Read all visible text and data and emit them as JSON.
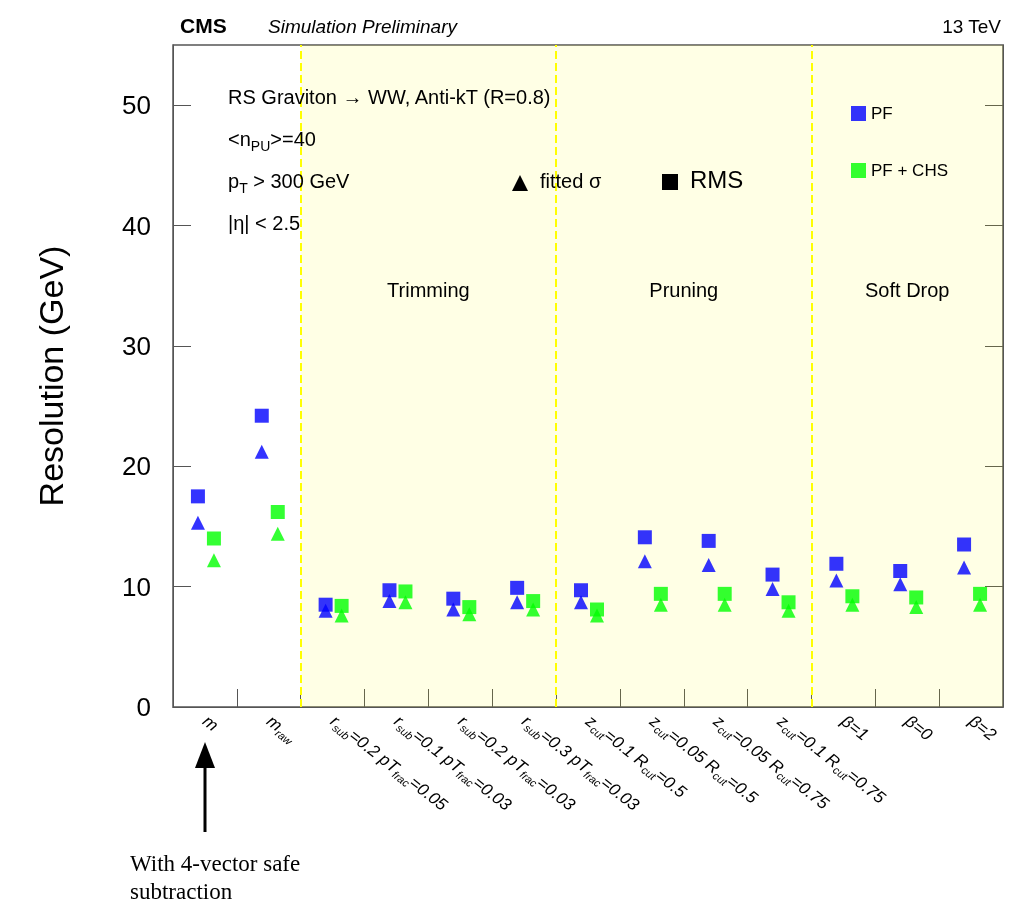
{
  "chart_data": {
    "type": "scatter",
    "ylabel": "Resolution (GeV)",
    "categories": [
      "m",
      "m$_{raw}$",
      "r$_{sub}$=0.2 pT$_{frac}$=0.05",
      "r$_{sub}$=0.1 pT$_{frac}$=0.03",
      "r$_{sub}$=0.2 pT$_{frac}$=0.03",
      "r$_{sub}$=0.3 pT$_{frac}$=0.03",
      "z$_{cut}$=0.1 R$_{cut}$=0.5",
      "z$_{cut}$=0.05 R$_{cut}$=0.5",
      "z$_{cut}$=0.05 R$_{cut}$=0.75",
      "z$_{cut}$=0.1 R$_{cut}$=0.75",
      "β=1",
      "β=0",
      "β=2"
    ],
    "series": [
      {
        "name": "PF",
        "color": "#0000ff",
        "marker": "square",
        "values": [
          17.5,
          24.2,
          8.5,
          9.7,
          9.0,
          9.9,
          9.7,
          14.1,
          13.8,
          11.0,
          11.9,
          11.3,
          13.5
        ]
      },
      {
        "color": "#0000ff",
        "marker": "triangle",
        "values": [
          15.3,
          21.2,
          8.0,
          8.8,
          8.1,
          8.7,
          8.7,
          12.1,
          11.8,
          9.8,
          10.5,
          10.2,
          11.6
        ]
      },
      {
        "name": "PF + CHS",
        "color": "#00ff00",
        "marker": "square",
        "values": [
          14.0,
          16.2,
          8.4,
          9.6,
          8.3,
          8.8,
          8.1,
          9.4,
          9.4,
          8.7,
          9.2,
          9.1,
          9.4
        ]
      },
      {
        "color": "#00ff00",
        "marker": "triangle",
        "values": [
          12.2,
          14.4,
          7.6,
          8.7,
          7.7,
          8.1,
          7.6,
          8.5,
          8.5,
          8.0,
          8.5,
          8.3,
          8.5
        ]
      }
    ],
    "ylim": [
      0,
      55
    ],
    "yticks": [
      0,
      10,
      20,
      30,
      40,
      50
    ],
    "bands": [
      {
        "axis": "x",
        "from": "r$_{sub}$=0.2 pT$_{frac}$=0.05",
        "to": "r$_{sub}$=0.3 pT$_{frac}$=0.03",
        "label": "Trimming",
        "color": "#ffff00"
      },
      {
        "axis": "x",
        "from": "z$_{cut}$=0.1 R$_{cut}$=0.5",
        "to": "z$_{cut}$=0.1 R$_{cut}$=0.75",
        "label": "Pruning",
        "color": "#ffff00"
      },
      {
        "axis": "x",
        "from": "β=1",
        "to": "β=2",
        "label": "Soft Drop",
        "color": "#ffff00"
      }
    ],
    "legend": "top right",
    "annotations": [
      "CMS",
      "Simulation Preliminary",
      "13 TeV",
      "RS Graviton → WW, Anti-kT (R=0.8)",
      "<n$_{PU}$>=40",
      "p$_{T}$ > 300 GeV",
      "|η| < 2.5",
      "fitted σ",
      "RMS",
      "With 4-vector safe subtraction"
    ]
  }
}
